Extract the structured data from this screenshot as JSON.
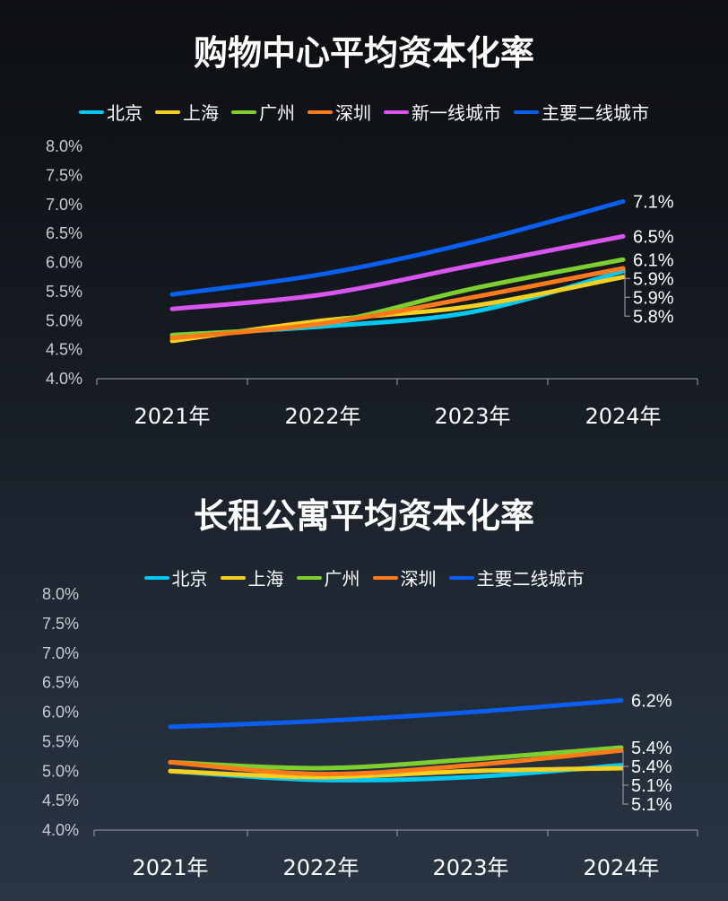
{
  "chart_data": [
    {
      "type": "line",
      "title": "购物中心平均资本化率",
      "categories": [
        "2021年",
        "2022年",
        "2023年",
        "2024年"
      ],
      "yticks": [
        "4.0%",
        "4.5%",
        "5.0%",
        "5.5%",
        "6.0%",
        "6.5%",
        "7.0%",
        "7.5%",
        "8.0%"
      ],
      "ylim": [
        4.0,
        8.0
      ],
      "legend_position": "top",
      "grid": false,
      "series": [
        {
          "name": "北京",
          "color": "#00c8f0",
          "values": [
            4.75,
            4.9,
            5.15,
            5.85
          ],
          "end_label": "5.9%"
        },
        {
          "name": "上海",
          "color": "#f5d020",
          "values": [
            4.65,
            5.0,
            5.25,
            5.75
          ],
          "end_label": "5.8%"
        },
        {
          "name": "广州",
          "color": "#7ccf2e",
          "values": [
            4.75,
            4.95,
            5.55,
            6.05
          ],
          "end_label": "6.1%"
        },
        {
          "name": "深圳",
          "color": "#ff7a1a",
          "values": [
            4.7,
            4.95,
            5.4,
            5.9
          ],
          "end_label": "5.9%"
        },
        {
          "name": "新一线城市",
          "color": "#d855f0",
          "values": [
            5.2,
            5.45,
            5.95,
            6.45
          ],
          "end_label": "6.5%"
        },
        {
          "name": "主要二线城市",
          "color": "#0a5ff0",
          "values": [
            5.45,
            5.8,
            6.35,
            7.05
          ],
          "end_label": "7.1%"
        }
      ]
    },
    {
      "type": "line",
      "title": "长租公寓平均资本化率",
      "categories": [
        "2021年",
        "2022年",
        "2023年",
        "2024年"
      ],
      "yticks": [
        "4.0%",
        "4.5%",
        "5.0%",
        "5.5%",
        "6.0%",
        "6.5%",
        "7.0%",
        "7.5%",
        "8.0%"
      ],
      "ylim": [
        4.0,
        8.0
      ],
      "legend_position": "top",
      "grid": false,
      "series": [
        {
          "name": "北京",
          "color": "#00c8f0",
          "values": [
            5.0,
            4.85,
            4.9,
            5.1
          ],
          "end_label": "5.1%"
        },
        {
          "name": "上海",
          "color": "#f5d020",
          "values": [
            5.0,
            4.9,
            5.0,
            5.05
          ],
          "end_label": "5.1%"
        },
        {
          "name": "广州",
          "color": "#7ccf2e",
          "values": [
            5.15,
            5.05,
            5.2,
            5.4
          ],
          "end_label": "5.4%"
        },
        {
          "name": "深圳",
          "color": "#ff7a1a",
          "values": [
            5.15,
            4.95,
            5.1,
            5.35
          ],
          "end_label": "5.4%"
        },
        {
          "name": "主要二线城市",
          "color": "#0a5ff0",
          "values": [
            5.75,
            5.85,
            6.0,
            6.2
          ],
          "end_label": "6.2%"
        }
      ]
    }
  ]
}
